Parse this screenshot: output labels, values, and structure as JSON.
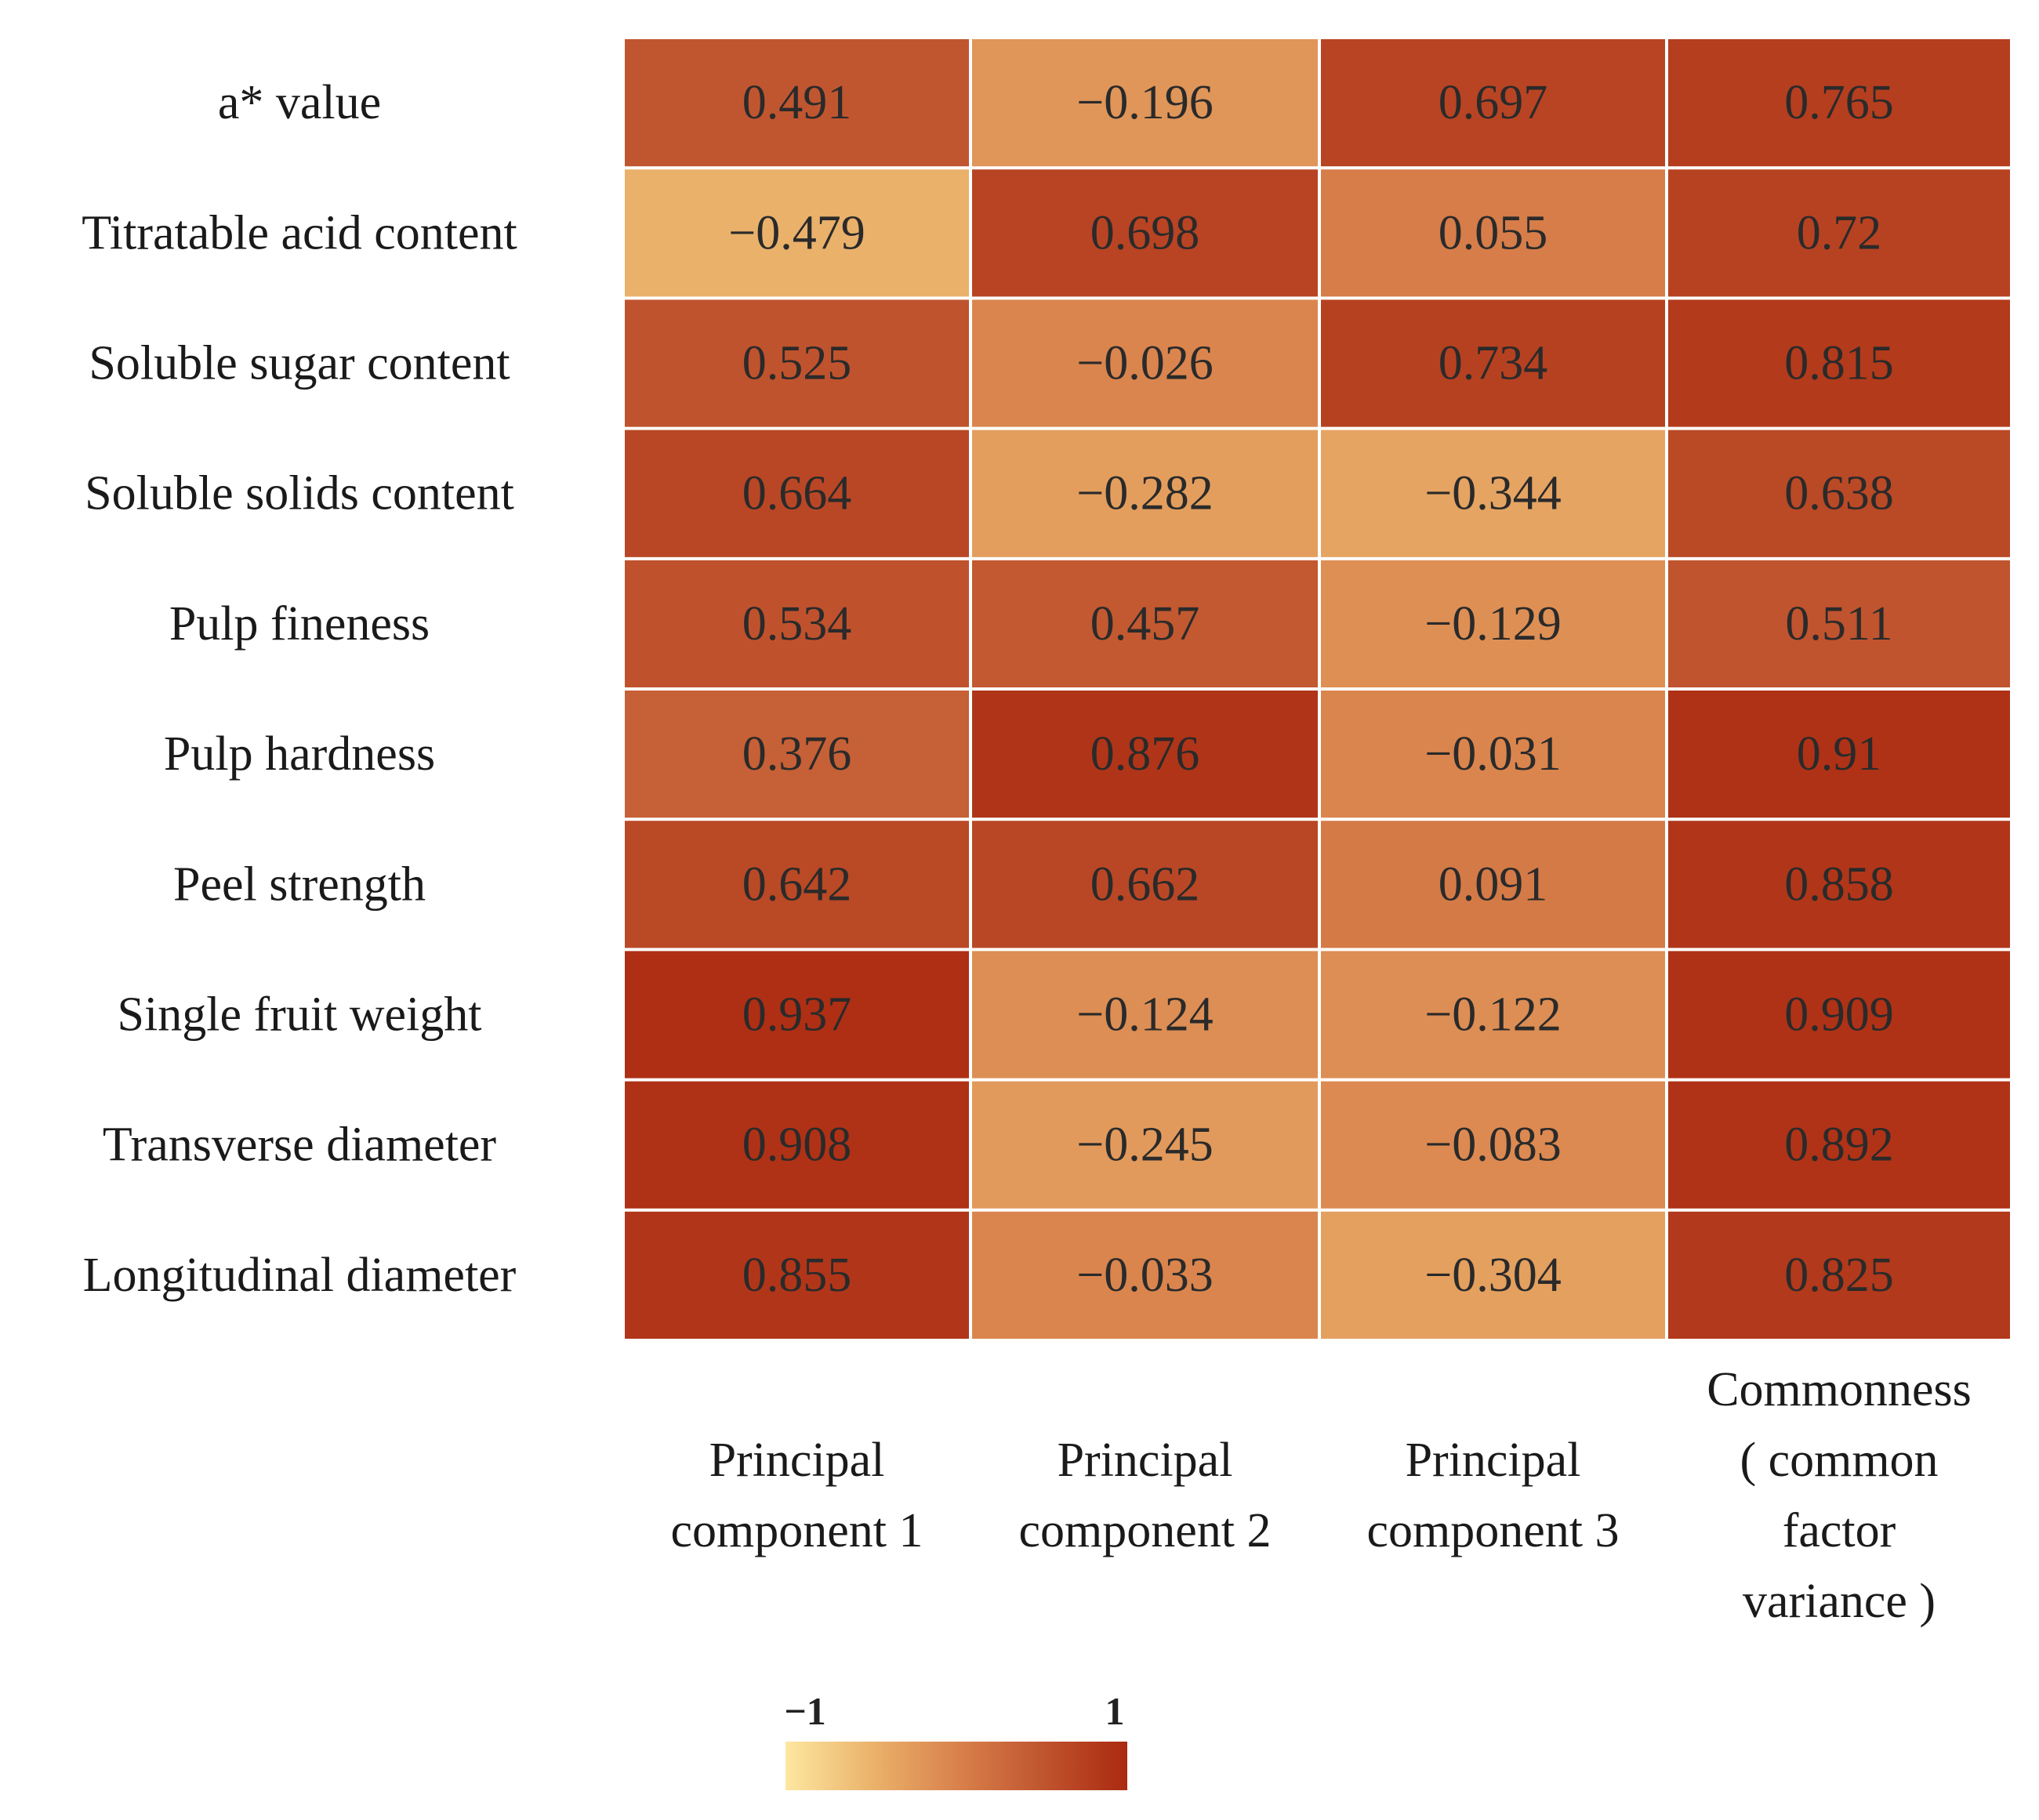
{
  "chart_data": {
    "type": "heatmap",
    "rows": [
      "a* value",
      "Titratable acid content",
      "Soluble sugar content",
      "Soluble solids content",
      "Pulp fineness",
      "Pulp hardness",
      "Peel strength",
      "Single fruit weight",
      "Transverse diameter",
      "Longitudinal diameter"
    ],
    "columns": [
      [
        "Principal",
        "component 1"
      ],
      [
        "Principal",
        "component 2"
      ],
      [
        "Principal",
        "component 3"
      ],
      [
        "Commonness",
        "( common",
        "factor",
        "variance )"
      ]
    ],
    "values": [
      [
        0.491,
        -0.196,
        0.697,
        0.765
      ],
      [
        -0.479,
        0.698,
        0.055,
        0.72
      ],
      [
        0.525,
        -0.026,
        0.734,
        0.815
      ],
      [
        0.664,
        -0.282,
        -0.344,
        0.638
      ],
      [
        0.534,
        0.457,
        -0.129,
        0.511
      ],
      [
        0.376,
        0.876,
        -0.031,
        0.91
      ],
      [
        0.642,
        0.662,
        0.091,
        0.858
      ],
      [
        0.937,
        -0.124,
        -0.122,
        0.909
      ],
      [
        0.908,
        -0.245,
        -0.083,
        0.892
      ],
      [
        0.855,
        -0.033,
        -0.304,
        0.825
      ]
    ],
    "value_labels": [
      [
        "0.491",
        "−0.196",
        "0.697",
        "0.765"
      ],
      [
        "−0.479",
        "0.698",
        "0.055",
        "0.72"
      ],
      [
        "0.525",
        "−0.026",
        "0.734",
        "0.815"
      ],
      [
        "0.664",
        "−0.282",
        "−0.344",
        "0.638"
      ],
      [
        "0.534",
        "0.457",
        "−0.129",
        "0.511"
      ],
      [
        "0.376",
        "0.876",
        "−0.031",
        "0.91"
      ],
      [
        "0.642",
        "0.662",
        "0.091",
        "0.858"
      ],
      [
        "0.937",
        "−0.124",
        "−0.122",
        "0.909"
      ],
      [
        "0.908",
        "−0.245",
        "−0.083",
        "0.892"
      ],
      [
        "0.855",
        "−0.033",
        "−0.304",
        "0.825"
      ]
    ],
    "color_scale": {
      "min": -1,
      "max": 1,
      "min_label": "−1",
      "max_label": "1",
      "stops": [
        "#fde7a0",
        "#ebb36c",
        "#d9824c",
        "#c0552f",
        "#ab2a10"
      ]
    },
    "legend_placement": "bottom"
  }
}
